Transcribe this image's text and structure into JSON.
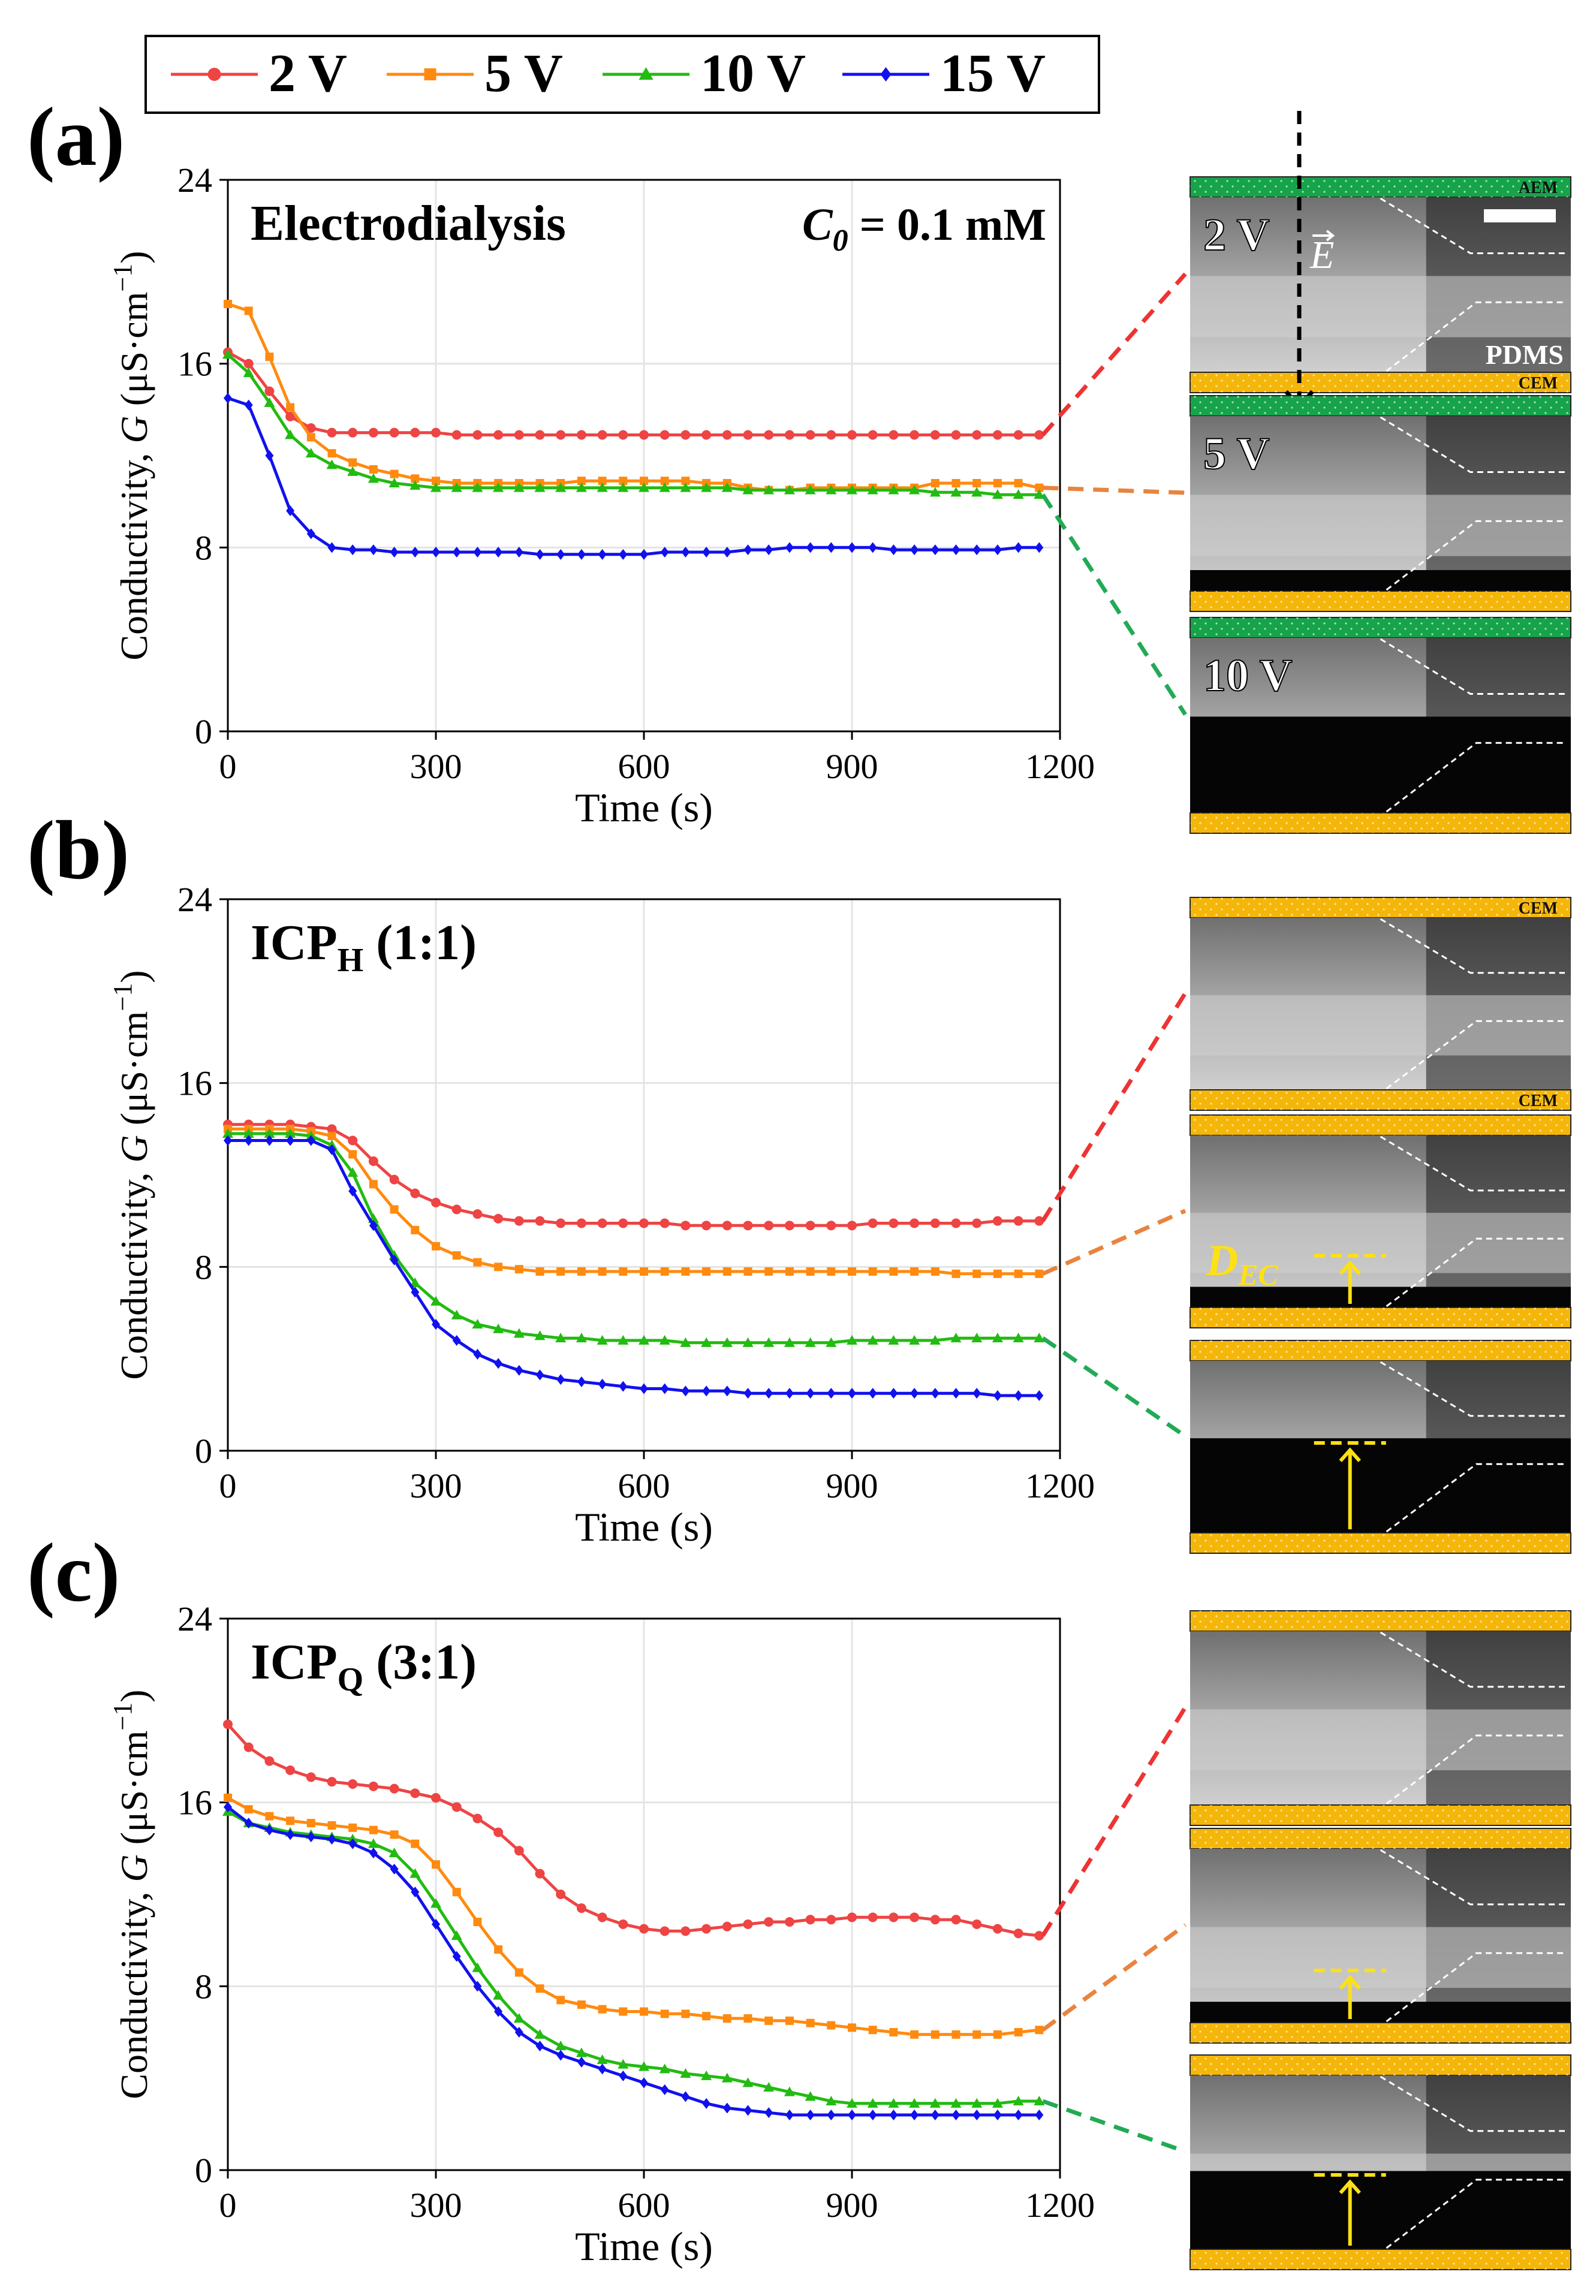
{
  "legend": [
    {
      "label": "2 V",
      "color": "#EE4444",
      "marker": "circle"
    },
    {
      "label": "5 V",
      "color": "#FF8A0F",
      "marker": "square"
    },
    {
      "label": "10 V",
      "color": "#22BB11",
      "marker": "triangle"
    },
    {
      "label": "15 V",
      "color": "#1111EE",
      "marker": "diamond"
    }
  ],
  "chart_data": [
    {
      "panel": "(a)",
      "type": "line",
      "title": "Electrodialysis",
      "annotation_var": "C",
      "annotation_sub": "0",
      "annotation_value": " = 0.1 mM",
      "xlabel": "Time (s)",
      "ylabel_pre": "Conductivity, ",
      "ylabel_var": "G",
      "ylabel_post": " (μS·cm",
      "ylabel_exp": "−1",
      "ylabel_close": ")",
      "xlim": [
        0,
        1200
      ],
      "ylim": [
        0,
        24
      ],
      "xticks": [
        0,
        300,
        600,
        900,
        1200
      ],
      "yticks": [
        0,
        8,
        16,
        24
      ],
      "x": [
        0,
        30,
        60,
        90,
        120,
        150,
        180,
        210,
        240,
        270,
        300,
        330,
        360,
        390,
        420,
        450,
        480,
        510,
        540,
        570,
        600,
        630,
        660,
        690,
        720,
        750,
        780,
        810,
        840,
        870,
        900,
        930,
        960,
        990,
        1020,
        1050,
        1080,
        1110,
        1140,
        1170
      ],
      "series": [
        {
          "name": "2 V",
          "values": [
            16.5,
            16.0,
            14.8,
            13.7,
            13.2,
            13.0,
            13.0,
            13.0,
            13.0,
            13.0,
            13.0,
            12.9,
            12.9,
            12.9,
            12.9,
            12.9,
            12.9,
            12.9,
            12.9,
            12.9,
            12.9,
            12.9,
            12.9,
            12.9,
            12.9,
            12.9,
            12.9,
            12.9,
            12.9,
            12.9,
            12.9,
            12.9,
            12.9,
            12.9,
            12.9,
            12.9,
            12.9,
            12.9,
            12.9,
            12.9
          ]
        },
        {
          "name": "5 V",
          "values": [
            18.6,
            18.3,
            16.3,
            14.1,
            12.8,
            12.1,
            11.7,
            11.4,
            11.2,
            11.0,
            10.9,
            10.8,
            10.8,
            10.8,
            10.8,
            10.8,
            10.8,
            10.9,
            10.9,
            10.9,
            10.9,
            10.9,
            10.9,
            10.8,
            10.8,
            10.6,
            10.5,
            10.5,
            10.6,
            10.6,
            10.6,
            10.6,
            10.6,
            10.6,
            10.8,
            10.8,
            10.8,
            10.8,
            10.8,
            10.6
          ]
        },
        {
          "name": "10 V",
          "values": [
            16.4,
            15.6,
            14.3,
            12.9,
            12.1,
            11.6,
            11.3,
            11.0,
            10.8,
            10.7,
            10.6,
            10.6,
            10.6,
            10.6,
            10.6,
            10.6,
            10.6,
            10.6,
            10.6,
            10.6,
            10.6,
            10.6,
            10.6,
            10.6,
            10.6,
            10.5,
            10.5,
            10.5,
            10.5,
            10.5,
            10.5,
            10.5,
            10.5,
            10.5,
            10.4,
            10.4,
            10.4,
            10.3,
            10.3,
            10.3
          ]
        },
        {
          "name": "15 V",
          "values": [
            14.5,
            14.2,
            12.0,
            9.6,
            8.6,
            8.0,
            7.9,
            7.9,
            7.8,
            7.8,
            7.8,
            7.8,
            7.8,
            7.8,
            7.8,
            7.7,
            7.7,
            7.7,
            7.7,
            7.7,
            7.7,
            7.8,
            7.8,
            7.8,
            7.8,
            7.9,
            7.9,
            8.0,
            8.0,
            8.0,
            8.0,
            8.0,
            7.9,
            7.9,
            7.9,
            7.9,
            7.9,
            7.9,
            8.0,
            8.0
          ]
        }
      ],
      "images": [
        {
          "label": "2 V",
          "top_strip": "green",
          "top_text": "AEM",
          "bottom_text": "CEM",
          "pdms_label": "PDMS",
          "field_arrow": true,
          "scale_bar": true,
          "field_var": "E",
          "dark_fraction": 0.0
        },
        {
          "label": "5 V",
          "top_strip": "green",
          "top_text": "",
          "bottom_text": "",
          "dark_fraction": 0.12
        },
        {
          "label": "10 V",
          "top_strip": "green",
          "top_text": "",
          "bottom_text": "",
          "dark_fraction": 0.55
        }
      ]
    },
    {
      "panel": "(b)",
      "type": "line",
      "title": "ICP",
      "title_sub": "H",
      "title_post": " (1:1)",
      "xlabel": "Time (s)",
      "ylabel_pre": "Conductivity, ",
      "ylabel_var": "G",
      "ylabel_post": " (μS·cm",
      "ylabel_exp": "−1",
      "ylabel_close": ")",
      "xlim": [
        0,
        1200
      ],
      "ylim": [
        0,
        24
      ],
      "xticks": [
        0,
        300,
        600,
        900,
        1200
      ],
      "yticks": [
        0,
        8,
        16,
        24
      ],
      "x": [
        0,
        30,
        60,
        90,
        120,
        150,
        180,
        210,
        240,
        270,
        300,
        330,
        360,
        390,
        420,
        450,
        480,
        510,
        540,
        570,
        600,
        630,
        660,
        690,
        720,
        750,
        780,
        810,
        840,
        870,
        900,
        930,
        960,
        990,
        1020,
        1050,
        1080,
        1110,
        1140,
        1170
      ],
      "series": [
        {
          "name": "2 V",
          "values": [
            14.2,
            14.2,
            14.2,
            14.2,
            14.1,
            14.0,
            13.5,
            12.6,
            11.8,
            11.2,
            10.8,
            10.5,
            10.3,
            10.1,
            10.0,
            10.0,
            9.9,
            9.9,
            9.9,
            9.9,
            9.9,
            9.9,
            9.8,
            9.8,
            9.8,
            9.8,
            9.8,
            9.8,
            9.8,
            9.8,
            9.8,
            9.9,
            9.9,
            9.9,
            9.9,
            9.9,
            9.9,
            10.0,
            10.0,
            10.0
          ]
        },
        {
          "name": "5 V",
          "values": [
            14.0,
            14.0,
            14.0,
            14.0,
            13.9,
            13.7,
            12.9,
            11.6,
            10.5,
            9.6,
            8.9,
            8.5,
            8.2,
            8.0,
            7.9,
            7.8,
            7.8,
            7.8,
            7.8,
            7.8,
            7.8,
            7.8,
            7.8,
            7.8,
            7.8,
            7.8,
            7.8,
            7.8,
            7.8,
            7.8,
            7.8,
            7.8,
            7.8,
            7.8,
            7.8,
            7.7,
            7.7,
            7.7,
            7.7,
            7.7
          ]
        },
        {
          "name": "10 V",
          "values": [
            13.8,
            13.8,
            13.8,
            13.8,
            13.7,
            13.3,
            12.1,
            10.1,
            8.5,
            7.3,
            6.5,
            5.9,
            5.5,
            5.3,
            5.1,
            5.0,
            4.9,
            4.9,
            4.8,
            4.8,
            4.8,
            4.8,
            4.7,
            4.7,
            4.7,
            4.7,
            4.7,
            4.7,
            4.7,
            4.7,
            4.8,
            4.8,
            4.8,
            4.8,
            4.8,
            4.9,
            4.9,
            4.9,
            4.9,
            4.9
          ]
        },
        {
          "name": "15 V",
          "values": [
            13.5,
            13.5,
            13.5,
            13.5,
            13.5,
            13.1,
            11.3,
            9.8,
            8.3,
            6.9,
            5.5,
            4.8,
            4.2,
            3.8,
            3.5,
            3.3,
            3.1,
            3.0,
            2.9,
            2.8,
            2.7,
            2.7,
            2.6,
            2.6,
            2.6,
            2.5,
            2.5,
            2.5,
            2.5,
            2.5,
            2.5,
            2.5,
            2.5,
            2.5,
            2.5,
            2.5,
            2.5,
            2.4,
            2.4,
            2.4
          ]
        }
      ],
      "images": [
        {
          "label": "",
          "top_strip": "orange",
          "top_text": "CEM",
          "bottom_text": "CEM",
          "dark_fraction": 0.0,
          "dec_marker": false
        },
        {
          "label": "",
          "top_strip": "orange",
          "top_text": "",
          "bottom_text": "",
          "dark_fraction": 0.12,
          "dec_marker": true,
          "dec_label_var": "D",
          "dec_label_sub": "EC"
        },
        {
          "label": "",
          "top_strip": "orange",
          "top_text": "",
          "bottom_text": "",
          "dark_fraction": 0.55,
          "dec_marker": true
        }
      ]
    },
    {
      "panel": "(c)",
      "type": "line",
      "title": "ICP",
      "title_sub": "Q",
      "title_post": " (3:1)",
      "xlabel": "Time (s)",
      "ylabel_pre": "Conductivity, ",
      "ylabel_var": "G",
      "ylabel_post": " (μS·cm",
      "ylabel_exp": "−1",
      "ylabel_close": ")",
      "xlim": [
        0,
        1200
      ],
      "ylim": [
        0,
        24
      ],
      "xticks": [
        0,
        300,
        600,
        900,
        1200
      ],
      "yticks": [
        0,
        8,
        16,
        24
      ],
      "x": [
        0,
        30,
        60,
        90,
        120,
        150,
        180,
        210,
        240,
        270,
        300,
        330,
        360,
        390,
        420,
        450,
        480,
        510,
        540,
        570,
        600,
        630,
        660,
        690,
        720,
        750,
        780,
        810,
        840,
        870,
        900,
        930,
        960,
        990,
        1020,
        1050,
        1080,
        1110,
        1140,
        1170
      ],
      "series": [
        {
          "name": "2 V",
          "values": [
            19.4,
            18.4,
            17.8,
            17.4,
            17.1,
            16.9,
            16.8,
            16.7,
            16.6,
            16.4,
            16.2,
            15.8,
            15.3,
            14.7,
            13.9,
            12.9,
            12.0,
            11.4,
            11.0,
            10.7,
            10.5,
            10.4,
            10.4,
            10.5,
            10.6,
            10.7,
            10.8,
            10.8,
            10.9,
            10.9,
            11.0,
            11.0,
            11.0,
            11.0,
            10.9,
            10.9,
            10.7,
            10.5,
            10.3,
            10.2
          ]
        },
        {
          "name": "5 V",
          "values": [
            16.2,
            15.7,
            15.4,
            15.2,
            15.1,
            15.0,
            14.9,
            14.8,
            14.6,
            14.2,
            13.3,
            12.1,
            10.8,
            9.6,
            8.6,
            7.9,
            7.4,
            7.2,
            7.0,
            6.9,
            6.9,
            6.8,
            6.8,
            6.7,
            6.6,
            6.6,
            6.5,
            6.5,
            6.4,
            6.3,
            6.2,
            6.1,
            6.0,
            5.9,
            5.9,
            5.9,
            5.9,
            5.9,
            6.0,
            6.1
          ]
        },
        {
          "name": "10 V",
          "values": [
            15.6,
            15.1,
            14.9,
            14.7,
            14.6,
            14.5,
            14.4,
            14.2,
            13.8,
            12.9,
            11.6,
            10.2,
            8.8,
            7.6,
            6.6,
            5.9,
            5.4,
            5.1,
            4.8,
            4.6,
            4.5,
            4.4,
            4.2,
            4.1,
            4.0,
            3.8,
            3.6,
            3.4,
            3.2,
            3.0,
            2.9,
            2.9,
            2.9,
            2.9,
            2.9,
            2.9,
            2.9,
            2.9,
            3.0,
            3.0
          ]
        },
        {
          "name": "15 V",
          "values": [
            15.8,
            15.1,
            14.8,
            14.6,
            14.5,
            14.4,
            14.2,
            13.8,
            13.1,
            12.1,
            10.7,
            9.3,
            8.0,
            6.9,
            6.0,
            5.4,
            5.0,
            4.7,
            4.4,
            4.1,
            3.8,
            3.5,
            3.2,
            2.9,
            2.7,
            2.6,
            2.5,
            2.4,
            2.4,
            2.4,
            2.4,
            2.4,
            2.4,
            2.4,
            2.4,
            2.4,
            2.4,
            2.4,
            2.4,
            2.4
          ]
        }
      ],
      "images": [
        {
          "label": "",
          "top_strip": "orange",
          "top_text": "",
          "bottom_text": "",
          "dark_fraction": 0.0,
          "dec_marker": false
        },
        {
          "label": "",
          "top_strip": "orange",
          "top_text": "",
          "bottom_text": "",
          "dark_fraction": 0.12,
          "dec_marker": true
        },
        {
          "label": "",
          "top_strip": "orange",
          "top_text": "",
          "bottom_text": "",
          "dark_fraction": 0.45,
          "dec_marker": true
        }
      ]
    }
  ]
}
